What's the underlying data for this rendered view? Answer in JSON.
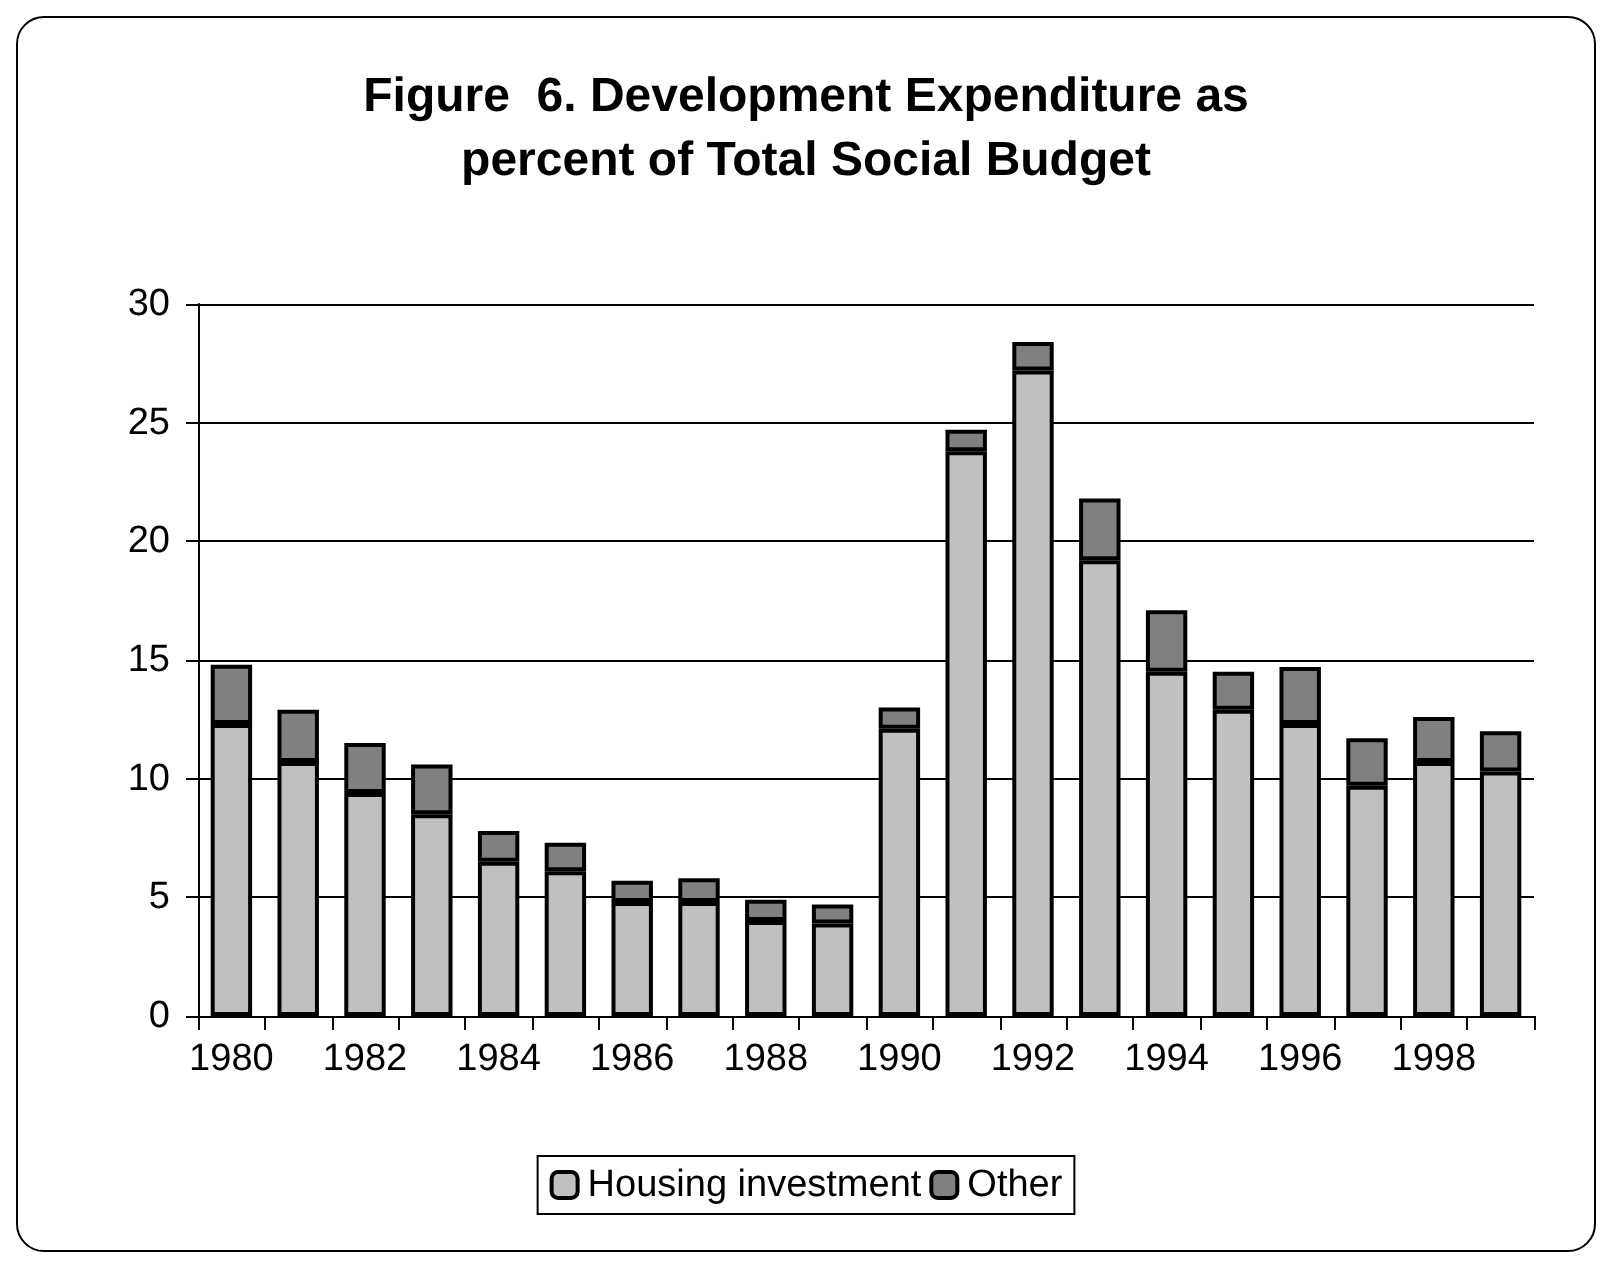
{
  "chart_data": {
    "type": "bar",
    "title": "Figure  6. Development Expenditure as\npercent of Total Social Budget",
    "categories": [
      "1980",
      null,
      "1982",
      null,
      "1984",
      null,
      "1986",
      null,
      "1988",
      null,
      "1990",
      null,
      "1992",
      null,
      "1994",
      null,
      "1996",
      null,
      "1998",
      null
    ],
    "stacked": true,
    "series": [
      {
        "name": "Housing investment",
        "color": "#c0c0c0",
        "values": [
          12.3,
          10.7,
          9.4,
          8.5,
          6.5,
          6.1,
          4.8,
          4.8,
          4.0,
          3.9,
          12.1,
          23.8,
          27.2,
          19.2,
          14.5,
          12.9,
          12.3,
          9.7,
          10.7,
          10.3
        ]
      },
      {
        "name": "Other",
        "color": "#808080",
        "values": [
          2.5,
          2.2,
          2.1,
          2.1,
          1.3,
          1.2,
          0.9,
          1.0,
          0.9,
          0.8,
          0.9,
          0.9,
          1.2,
          2.6,
          2.6,
          1.6,
          2.4,
          2.0,
          1.9,
          1.7
        ]
      }
    ],
    "ylim": [
      0,
      30
    ],
    "yticks": [
      0,
      5,
      10,
      15,
      20,
      25,
      30
    ],
    "grid": "y",
    "legend": "bottom"
  }
}
